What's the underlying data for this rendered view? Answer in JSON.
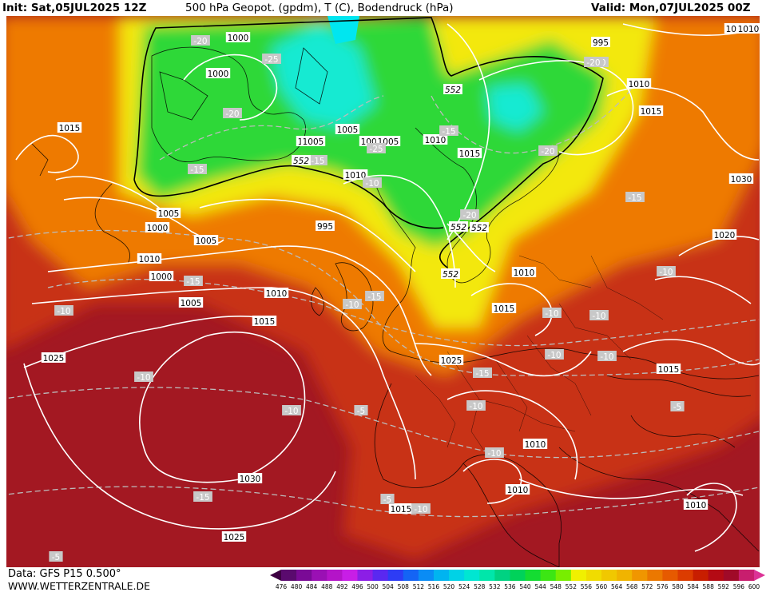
{
  "header": {
    "init": "Init: Sat,05JUL2025 12Z",
    "title": "500 hPa Geopot. (gpdm), T (C), Bodendruck (hPa)",
    "valid": "Valid: Mon,07JUL2025 00Z"
  },
  "footer": {
    "data_source": "Data: GFS P15 0.500°",
    "website": "WWW.WETTERZENTRALE.DE"
  },
  "color_scale": {
    "ticks": [
      "476",
      "480",
      "484",
      "488",
      "492",
      "496",
      "500",
      "504",
      "508",
      "512",
      "516",
      "520",
      "524",
      "528",
      "532",
      "536",
      "540",
      "544",
      "548",
      "552",
      "556",
      "560",
      "564",
      "568",
      "572",
      "576",
      "580",
      "584",
      "588",
      "592",
      "596",
      "600"
    ],
    "colors": [
      "#3d0042",
      "#5a0a6e",
      "#7a0a96",
      "#9a10b4",
      "#b414c8",
      "#c81ee6",
      "#8c1ee6",
      "#5a28f0",
      "#2d3cf5",
      "#1464f5",
      "#0a8cf5",
      "#00b4f0",
      "#00d2e6",
      "#00e6d2",
      "#00e6aa",
      "#00d282",
      "#00d25a",
      "#14dc32",
      "#3ce614",
      "#78ee00",
      "#f0f000",
      "#f0dc00",
      "#f0c800",
      "#f0b400",
      "#f09600",
      "#eb7800",
      "#e65a00",
      "#dc3c00",
      "#c81e00",
      "#b40a14",
      "#a00a28",
      "#c81e6e",
      "#dc3296"
    ]
  },
  "pressure_labels": [
    "1005",
    "1000",
    "995",
    "1000",
    "1005",
    "1010",
    "1015",
    "1015",
    "1010",
    "1005",
    "1010",
    "1015",
    "1005",
    "1005",
    "1000",
    "1005",
    "1010",
    "995",
    "1000",
    "1005",
    "1010",
    "1015",
    "1025",
    "1030",
    "1025",
    "1020",
    "1030",
    "1025",
    "1015",
    "1010",
    "1010",
    "1010",
    "1010",
    "1015",
    "1005",
    "1005",
    "1010",
    "1010",
    "1015",
    "1010"
  ],
  "temperature_labels": [
    "-20",
    "-25",
    "-20",
    "-20",
    "-20",
    "-25",
    "-15",
    "-20",
    "-15",
    "-20",
    "-20",
    "-20",
    "-15",
    "-15",
    "-15",
    "-10",
    "-10",
    "-10",
    "-10",
    "-15",
    "-10",
    "-10",
    "-10",
    "-10",
    "-10",
    "-10",
    "-5",
    "-10",
    "-10",
    "-5",
    "-5",
    "-15",
    "-5",
    "-10",
    "-15",
    "-10"
  ],
  "height_labels": [
    "552",
    "552",
    "552",
    "552",
    "552"
  ],
  "colors": {
    "field_dark_red": "#a31822",
    "field_red": "#c83212",
    "field_orange": "#ee7a06",
    "field_yellow": "#f3e80a",
    "field_green": "#2ed838",
    "field_cyan": "#12ead2",
    "isobar": "#ffffff",
    "isotherm": "#bcbcbc"
  }
}
